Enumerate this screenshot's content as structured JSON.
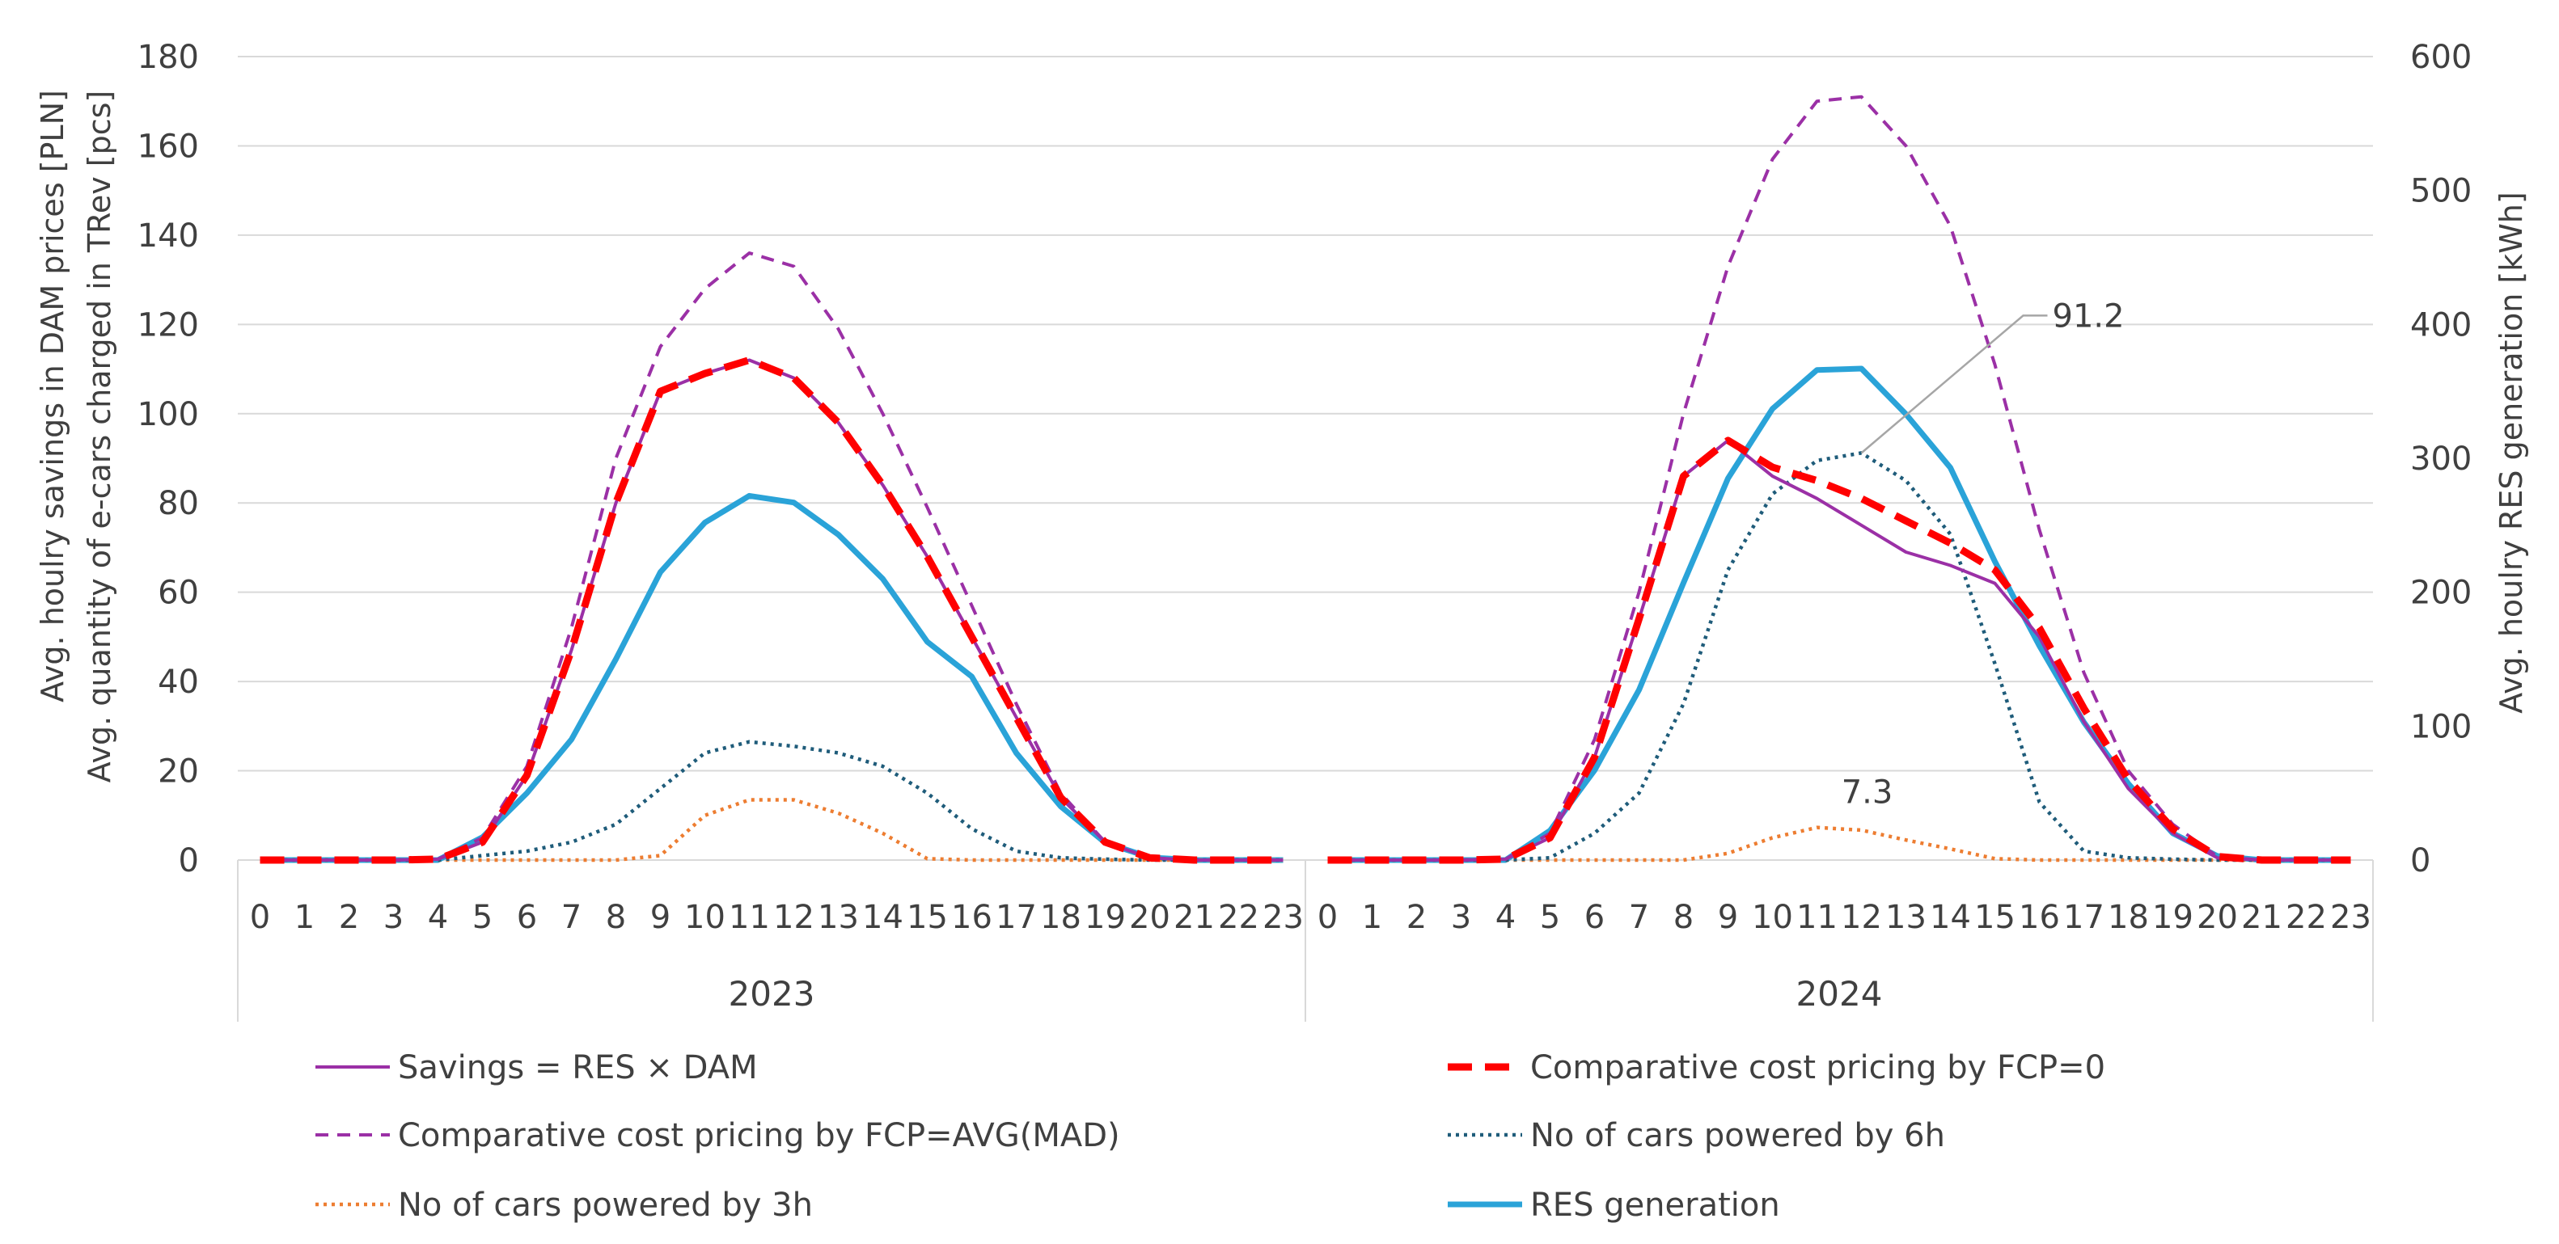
{
  "chart_data": {
    "type": "line",
    "title": "",
    "ylabel_left": [
      "Avg. houlry savings in DAM prices [PLN]",
      "Avg. quantity of e-cars charged in TRev [pcs]"
    ],
    "ylabel_right": "Avg. houlry RES generation [kWh]",
    "ylim_left": [
      0,
      180
    ],
    "yticks_left": [
      0,
      20,
      40,
      60,
      80,
      100,
      120,
      140,
      160,
      180
    ],
    "ylim_right": [
      0,
      600
    ],
    "yticks_right": [
      0,
      100,
      200,
      300,
      400,
      500,
      600
    ],
    "grid": true,
    "legend_position": "bottom",
    "groups": [
      {
        "label": "2023",
        "hours": [
          0,
          1,
          2,
          3,
          4,
          5,
          6,
          7,
          8,
          9,
          10,
          11,
          12,
          13,
          14,
          15,
          16,
          17,
          18,
          19,
          20,
          21,
          22,
          23
        ]
      },
      {
        "label": "2024",
        "hours": [
          0,
          1,
          2,
          3,
          4,
          5,
          6,
          7,
          8,
          9,
          10,
          11,
          12,
          13,
          14,
          15,
          16,
          17,
          18,
          19,
          20,
          21,
          22,
          23
        ]
      }
    ],
    "series": [
      {
        "name": "Savings = RES × DAM",
        "axis": "left",
        "style": "solid-thin",
        "color": "#9B30A6",
        "values": [
          [
            0,
            0,
            0,
            0,
            0.2,
            4,
            19,
            47,
            80,
            105,
            109,
            112,
            108,
            98,
            84,
            68,
            50,
            32,
            14,
            4,
            0.5,
            0,
            0,
            0
          ],
          [
            0,
            0,
            0,
            0,
            0.2,
            5,
            23,
            54,
            86,
            94,
            86,
            81,
            75,
            69,
            66,
            62,
            50,
            31,
            16,
            6,
            0.5,
            0,
            0,
            0
          ]
        ]
      },
      {
        "name": "Comparative cost pricing by FCP=0",
        "axis": "left",
        "style": "dashed-thick",
        "color": "#FF0000",
        "values": [
          [
            0,
            0,
            0,
            0,
            0.2,
            4,
            19,
            47,
            80,
            105,
            109,
            112,
            108,
            98,
            84,
            68,
            50,
            32,
            14,
            4,
            0.5,
            0,
            0,
            0
          ],
          [
            0,
            0,
            0,
            0,
            0.2,
            5,
            23,
            54,
            86,
            94,
            88,
            85,
            81,
            76,
            71,
            65,
            52,
            34,
            18,
            7,
            0.8,
            0,
            0,
            0
          ]
        ]
      },
      {
        "name": "Comparative cost pricing by FCP=AVG(MAD)",
        "axis": "left",
        "style": "dashed-thin",
        "color": "#9B30A6",
        "values": [
          [
            0,
            0,
            0,
            0,
            0.2,
            5,
            21,
            52,
            90,
            115,
            128,
            136,
            133,
            119,
            100,
            79,
            57,
            35,
            15,
            4,
            0.5,
            0,
            0,
            0
          ],
          [
            0,
            0,
            0,
            0,
            0.2,
            6,
            27,
            60,
            100,
            133,
            157,
            170,
            171,
            160,
            142,
            111,
            74,
            42,
            20,
            8,
            0.8,
            0,
            0,
            0
          ]
        ]
      },
      {
        "name": "No of cars powered by 6h",
        "axis": "left",
        "style": "dotted",
        "color": "#1F5C7A",
        "values": [
          [
            0,
            0,
            0,
            0,
            0,
            1,
            2,
            4,
            8,
            16,
            24,
            26.5,
            25.5,
            24,
            21,
            15,
            7,
            2,
            0.5,
            0.2,
            0,
            0,
            0,
            0
          ],
          [
            0,
            0,
            0,
            0,
            0,
            0.5,
            6,
            15,
            35,
            65,
            82,
            89.5,
            91.2,
            85,
            73,
            44,
            13,
            2,
            0.5,
            0.2,
            0,
            0,
            0,
            0
          ]
        ]
      },
      {
        "name": "No of cars powered by 3h",
        "axis": "left",
        "style": "dotted",
        "color": "#ED7D31",
        "values": [
          [
            0,
            0,
            0,
            0,
            0,
            0,
            0,
            0,
            0,
            1,
            10,
            13.5,
            13.5,
            10.5,
            6,
            0.3,
            0,
            0,
            0,
            0,
            0,
            0,
            0,
            0
          ],
          [
            0,
            0,
            0,
            0,
            0,
            0,
            0,
            0,
            0,
            1.5,
            5,
            7.3,
            6.7,
            4.5,
            2.5,
            0.3,
            0,
            0,
            0,
            0,
            0,
            0,
            0,
            0
          ]
        ]
      },
      {
        "name": "RES generation",
        "axis": "right",
        "style": "solid-thick",
        "color": "#2AA3D8",
        "values": [
          [
            0,
            0,
            0,
            0,
            0,
            17,
            50,
            90,
            150,
            215,
            252,
            272,
            267,
            243,
            210,
            163,
            137,
            80,
            40,
            13,
            2,
            0,
            0,
            0
          ],
          [
            0,
            0,
            0,
            0,
            0,
            22,
            67,
            127,
            207,
            285,
            337,
            366,
            367,
            333,
            293,
            223,
            160,
            103,
            57,
            20,
            3,
            0,
            0,
            0
          ]
        ]
      }
    ],
    "annotations": [
      {
        "text": "91.2",
        "series": "No of cars powered by 6h",
        "group": 1,
        "hour": 12,
        "value": 91.2
      },
      {
        "text": "7.3",
        "series": "No of cars powered by 3h",
        "group": 1,
        "hour": 11,
        "value": 7.3
      }
    ]
  }
}
